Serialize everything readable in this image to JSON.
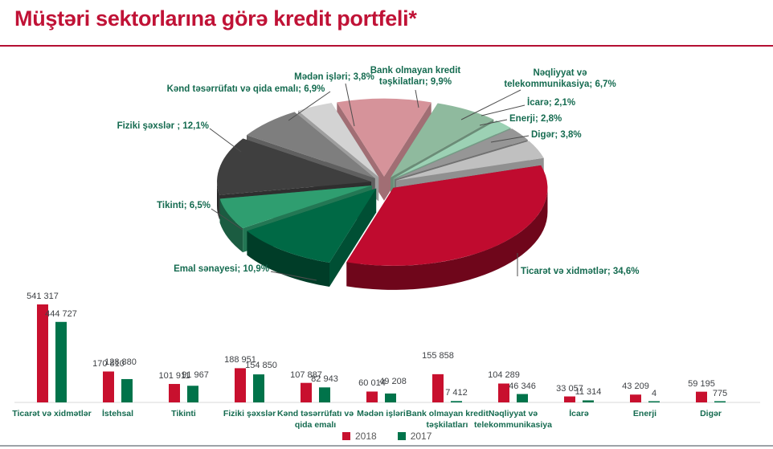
{
  "page": {
    "title": "Müştəri sektorlarına görə kredit portfeli*"
  },
  "colors": {
    "accent": "#C01236",
    "category_label": "#156B50",
    "value_label": "#3F4246",
    "leader_line": "#4D4D4D"
  },
  "chart_data": [
    {
      "type": "pie",
      "style": "3d-exploded",
      "unit": "%",
      "slices": [
        {
          "label": "Bank olmayan kredit təşkilatları",
          "pct": 9.9,
          "color": "#D6939A",
          "display": "Bank olmayan kredit təşkilatları; 9,9%"
        },
        {
          "label": "Nəqliyyat və telekommunikasiya",
          "pct": 6.7,
          "color": "#8FBA9E",
          "display": "Nəqliyyat və telekommunikasiya; 6,7%"
        },
        {
          "label": "İcarə",
          "pct": 2.1,
          "color": "#9CD1B4",
          "display": "İcarə; 2,1%"
        },
        {
          "label": "Enerji",
          "pct": 2.8,
          "color": "#969696",
          "display": "Enerji; 2,8%"
        },
        {
          "label": "Digər",
          "pct": 3.8,
          "color": "#C0C0C0",
          "display": "Digər; 3,8%"
        },
        {
          "label": "Ticarət və xidmətlər",
          "pct": 34.6,
          "color": "#C00B2F",
          "display": "Ticarət və xidmətlər; 34,6%"
        },
        {
          "label": "Emal sənayesi",
          "pct": 10.9,
          "color": "#006945",
          "display": "Emal sənayesi; 10,9%"
        },
        {
          "label": "Tikinti",
          "pct": 6.5,
          "color": "#2F9E70",
          "display": "Tikinti; 6,5%"
        },
        {
          "label": "Fiziki şəxslər",
          "pct": 12.1,
          "color": "#3F3F3F",
          "display": "Fiziki şəxslər ; 12,1%"
        },
        {
          "label": "Kənd təsərrüfatı və qida emalı",
          "pct": 6.9,
          "color": "#7E7E7E",
          "display": "Kənd təsərrüfatı və qida emalı; 6,9%"
        },
        {
          "label": "Mədən işləri",
          "pct": 3.8,
          "color": "#D3D3D3",
          "display": "Mədən işləri; 3,8%"
        }
      ]
    },
    {
      "type": "bar",
      "legend_position": "bottom",
      "grid": false,
      "categories": [
        "Ticarət və xidmətlər",
        "İstehsal",
        "Tikinti",
        "Fiziki şəxslər",
        "Kənd təsərrüfatı və qida emalı",
        "Mədən işləri",
        "Bank olmayan kredit təşkilatları",
        "Nəqliyyat və telekommunikasiya",
        "İcarə",
        "Enerji",
        "Digər"
      ],
      "series": [
        {
          "name": "2018",
          "color": "#C8102E",
          "values": [
            541317,
            170810,
            101911,
            188951,
            107887,
            60014,
            155858,
            104289,
            33057,
            43209,
            59195
          ]
        },
        {
          "name": "2017",
          "color": "#00734A",
          "values": [
            444727,
            128880,
            91967,
            154850,
            82943,
            49208,
            7412,
            46346,
            11314,
            4,
            775
          ]
        }
      ]
    }
  ]
}
